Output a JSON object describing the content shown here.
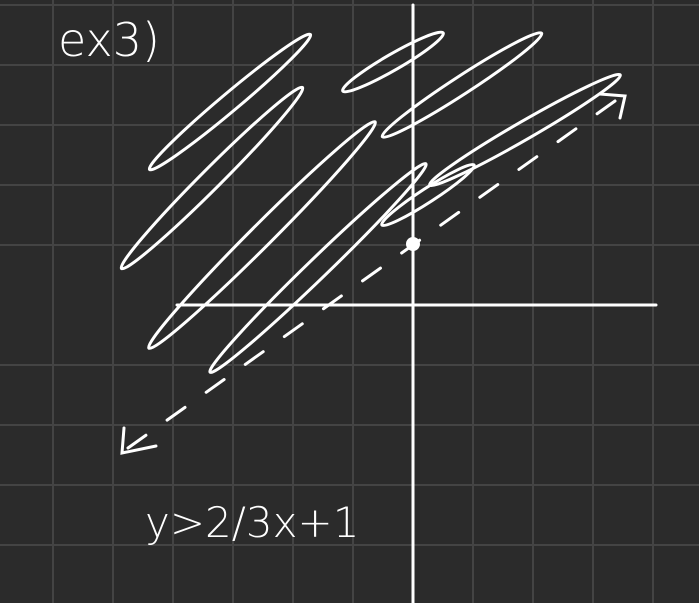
{
  "label": "ex3)",
  "inequality": "y>2/3x+1"
}
